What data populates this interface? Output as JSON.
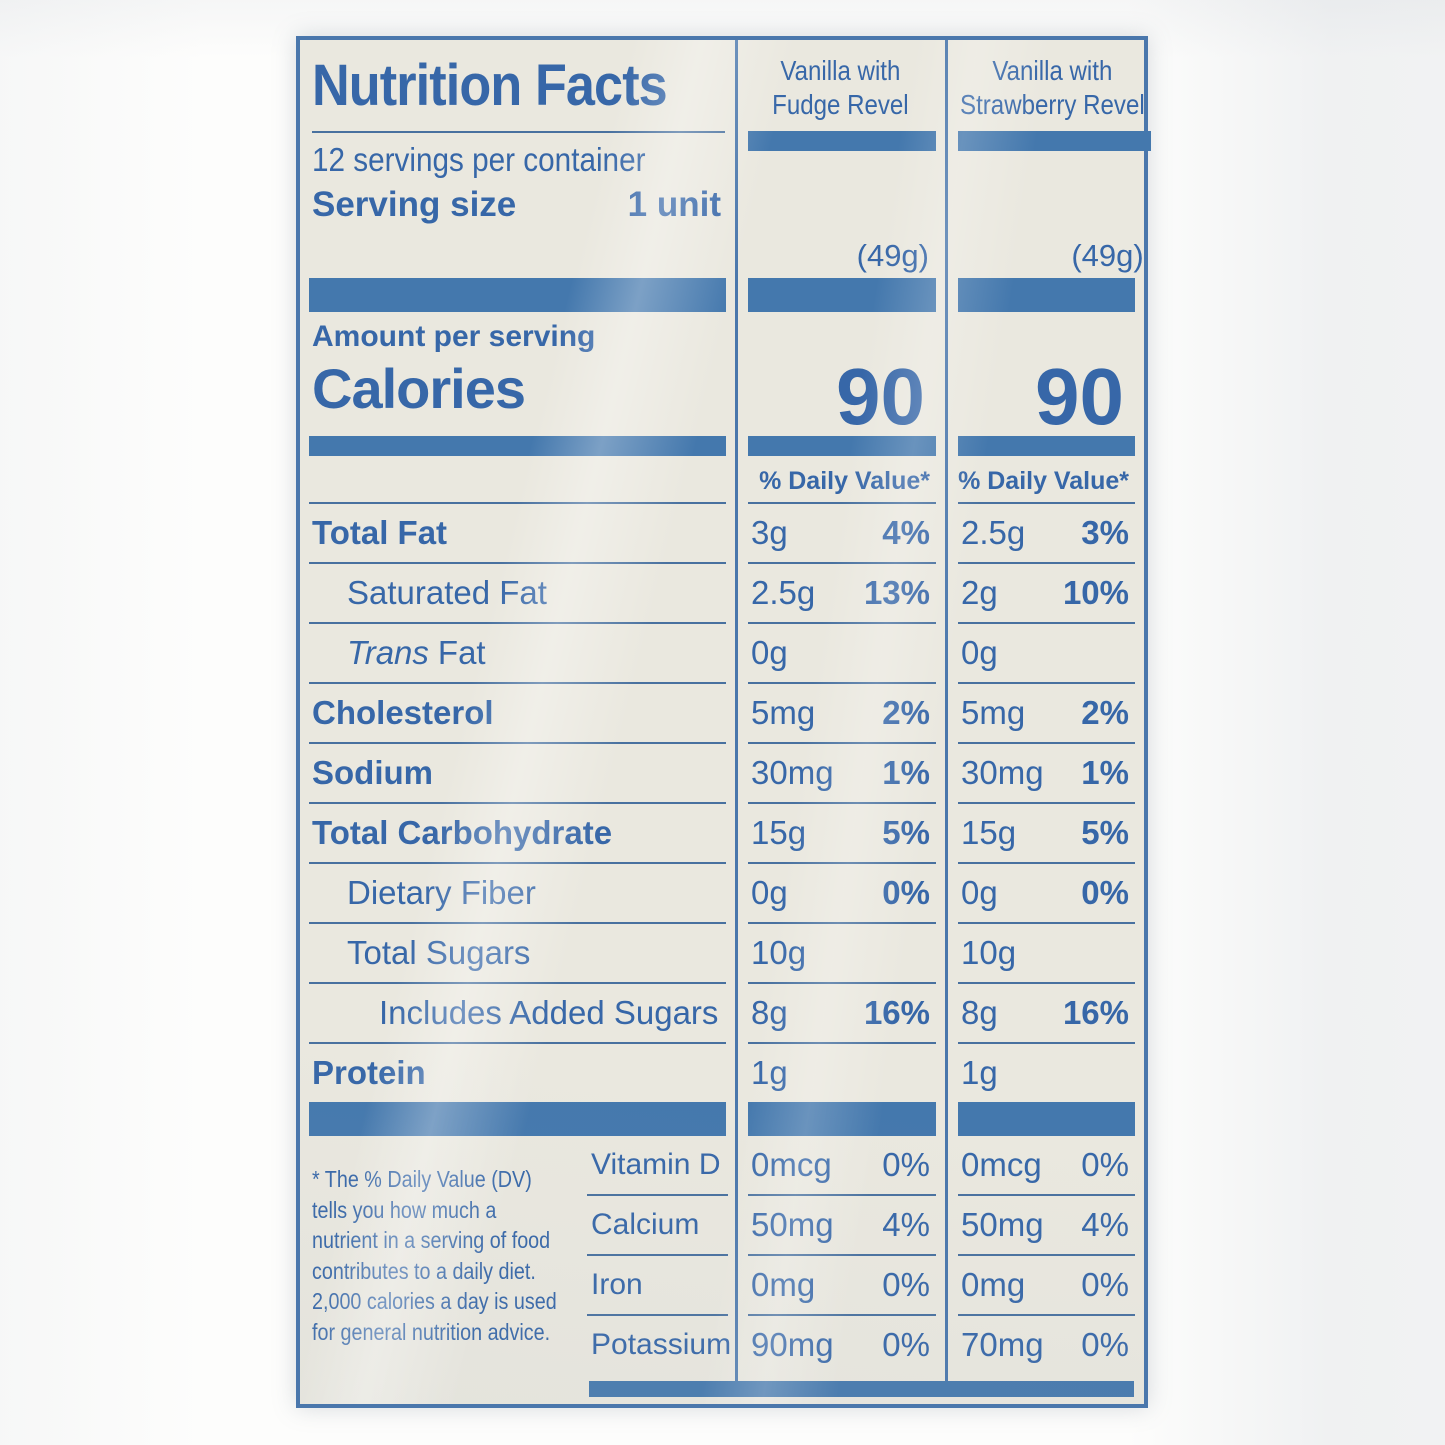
{
  "colors": {
    "text_blue": "#3767a8",
    "bar_blue": "#4478ad",
    "hairline_blue": "#49719f",
    "label_background": "#eae8df",
    "page_background": "#fdfdfc"
  },
  "header": {
    "title": "Nutrition Facts",
    "servings_per_container": "12 servings per container",
    "serving_size_label": "Serving size",
    "serving_size_value": "1 unit"
  },
  "columns": [
    {
      "flavor_line1": "Vanilla with",
      "flavor_line2": "Fudge Revel",
      "serving_weight": "(49g)",
      "calories": "90",
      "daily_value_header": "% Daily Value*"
    },
    {
      "flavor_line1": "Vanilla with",
      "flavor_line2": "Strawberry Revel",
      "serving_weight": "(49g)",
      "calories": "90",
      "daily_value_header": "% Daily Value*"
    }
  ],
  "calories_section": {
    "amount_per_serving": "Amount per serving",
    "calories_label": "Calories"
  },
  "nutrients": [
    {
      "name": "Total Fat",
      "c1_amount": "3g",
      "c1_dv": "4%",
      "c2_amount": "2.5g",
      "c2_dv": "3%"
    },
    {
      "name": "Saturated Fat",
      "c1_amount": "2.5g",
      "c1_dv": "13%",
      "c2_amount": "2g",
      "c2_dv": "10%"
    },
    {
      "name_italic": "Trans",
      "name": "Fat",
      "c1_amount": "0g",
      "c1_dv": "",
      "c2_amount": "0g",
      "c2_dv": ""
    },
    {
      "name": "Cholesterol",
      "c1_amount": "5mg",
      "c1_dv": "2%",
      "c2_amount": "5mg",
      "c2_dv": "2%"
    },
    {
      "name": "Sodium",
      "c1_amount": "30mg",
      "c1_dv": "1%",
      "c2_amount": "30mg",
      "c2_dv": "1%"
    },
    {
      "name": "Total Carbohydrate",
      "c1_amount": "15g",
      "c1_dv": "5%",
      "c2_amount": "15g",
      "c2_dv": "5%"
    },
    {
      "name": "Dietary Fiber",
      "c1_amount": "0g",
      "c1_dv": "0%",
      "c2_amount": "0g",
      "c2_dv": "0%"
    },
    {
      "name": "Total Sugars",
      "c1_amount": "10g",
      "c1_dv": "",
      "c2_amount": "10g",
      "c2_dv": ""
    },
    {
      "name": "Includes Added Sugars",
      "c1_amount": "8g",
      "c1_dv": "16%",
      "c2_amount": "8g",
      "c2_dv": "16%"
    },
    {
      "name": "Protein",
      "c1_amount": "1g",
      "c1_dv": "",
      "c2_amount": "1g",
      "c2_dv": ""
    }
  ],
  "micronutrients": [
    {
      "name": "Vitamin D",
      "c1_amount": "0mcg",
      "c1_dv": "0%",
      "c2_amount": "0mcg",
      "c2_dv": "0%"
    },
    {
      "name": "Calcium",
      "c1_amount": "50mg",
      "c1_dv": "4%",
      "c2_amount": "50mg",
      "c2_dv": "4%"
    },
    {
      "name": "Iron",
      "c1_amount": "0mg",
      "c1_dv": "0%",
      "c2_amount": "0mg",
      "c2_dv": "0%"
    },
    {
      "name": "Potassium",
      "c1_amount": "90mg",
      "c1_dv": "0%",
      "c2_amount": "70mg",
      "c2_dv": "0%"
    }
  ],
  "footnote_lines": [
    "* The % Daily Value (DV)",
    "tells you how much a",
    "nutrient in a serving of food",
    "contributes to a daily diet.",
    "2,000 calories a day is used",
    "for general nutrition advice."
  ]
}
